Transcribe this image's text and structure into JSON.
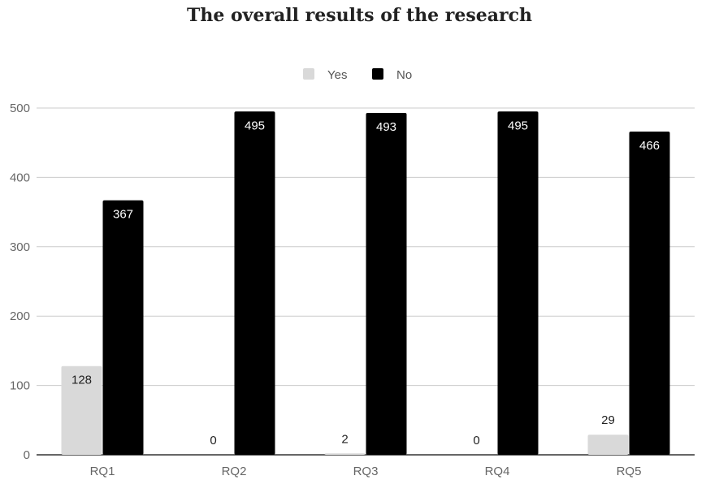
{
  "chart_data": {
    "type": "bar",
    "title": "The overall results of the research",
    "categories": [
      "RQ1",
      "RQ2",
      "RQ3",
      "RQ4",
      "RQ5"
    ],
    "series": [
      {
        "name": "Yes",
        "values": [
          128,
          0,
          2,
          0,
          29
        ],
        "color": "#d9d9d9"
      },
      {
        "name": "No",
        "values": [
          367,
          495,
          493,
          495,
          466
        ],
        "color": "#000000"
      }
    ],
    "yticks": [
      0,
      100,
      200,
      300,
      400,
      500
    ],
    "ylim": [
      0,
      500
    ],
    "grid": true,
    "legend_position": "top-center",
    "data_labels": true
  }
}
